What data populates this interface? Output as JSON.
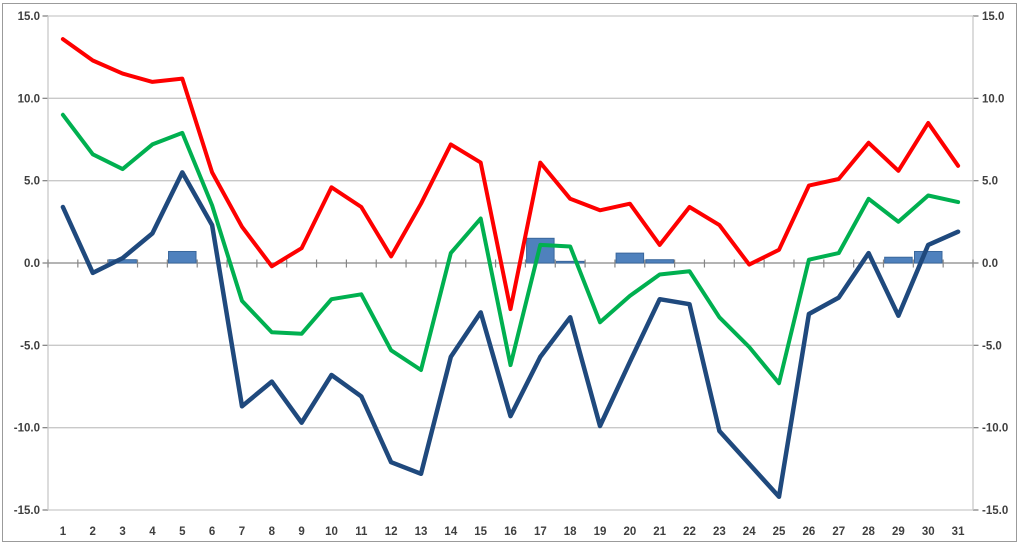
{
  "chart_data": {
    "type": "line",
    "title": "",
    "xlabel": "",
    "ylabel": "",
    "x": [
      1,
      2,
      3,
      4,
      5,
      6,
      7,
      8,
      9,
      10,
      11,
      12,
      13,
      14,
      15,
      16,
      17,
      18,
      19,
      20,
      21,
      22,
      23,
      24,
      25,
      26,
      27,
      28,
      29,
      30,
      31
    ],
    "xtick_labels": [
      "1",
      "2",
      "3",
      "4",
      "5",
      "6",
      "7",
      "8",
      "9",
      "10",
      "11",
      "12",
      "13",
      "14",
      "15",
      "16",
      "17",
      "18",
      "19",
      "20",
      "21",
      "22",
      "23",
      "24",
      "25",
      "26",
      "27",
      "28",
      "29",
      "30",
      "31"
    ],
    "ylim": [
      -15,
      15
    ],
    "ytick_values": [
      15,
      10,
      5,
      0,
      -5,
      -10,
      -15
    ],
    "ytick_labels_left": [
      "15.0",
      "10.0",
      "5.0",
      "0.0",
      "-5.0",
      "-10.0",
      "-15.0"
    ],
    "ytick_labels_right": [
      "15.0",
      "10.0",
      "5.0",
      "0.0",
      "-5.0",
      "-10.0",
      "-15.0"
    ],
    "grid": true,
    "legend": null,
    "series": [
      {
        "name": "red-line",
        "type": "line",
        "color": "#FE0000",
        "stroke_width": 4,
        "values": [
          13.6,
          12.3,
          11.5,
          11.0,
          11.2,
          5.5,
          2.2,
          -0.2,
          0.9,
          4.6,
          3.4,
          0.4,
          3.6,
          7.2,
          6.1,
          -2.8,
          6.1,
          3.9,
          3.2,
          3.6,
          1.1,
          3.4,
          2.3,
          -0.1,
          0.8,
          4.7,
          5.1,
          7.3,
          5.6,
          8.5,
          5.9
        ]
      },
      {
        "name": "green-line",
        "type": "line",
        "color": "#00B050",
        "stroke_width": 4,
        "values": [
          9.0,
          6.6,
          5.7,
          7.2,
          7.9,
          3.5,
          -2.3,
          -4.2,
          -4.3,
          -2.2,
          -1.9,
          -5.3,
          -6.5,
          0.6,
          2.7,
          -6.2,
          1.1,
          1.0,
          -3.6,
          -2.0,
          -0.7,
          -0.5,
          -3.3,
          -5.1,
          -7.3,
          0.2,
          0.6,
          3.9,
          2.5,
          4.1,
          3.7
        ]
      },
      {
        "name": "navy-line",
        "type": "line",
        "color": "#1F497D",
        "stroke_width": 4.5,
        "values": [
          3.4,
          -0.6,
          0.3,
          1.8,
          5.5,
          2.3,
          -8.7,
          -7.2,
          -9.7,
          -6.8,
          -8.1,
          -12.1,
          -12.8,
          -5.7,
          -3.0,
          -9.3,
          -5.7,
          -3.3,
          -9.9,
          -6.0,
          -2.2,
          -2.5,
          -10.2,
          -12.2,
          -14.2,
          -3.1,
          -2.1,
          0.6,
          -3.2,
          1.1,
          1.9
        ]
      },
      {
        "name": "blue-bars",
        "type": "bar",
        "color": "#4F81BD",
        "border_color": "#3A679C",
        "values": [
          null,
          null,
          0.2,
          null,
          0.7,
          null,
          null,
          null,
          null,
          null,
          null,
          null,
          null,
          null,
          null,
          null,
          1.5,
          0.1,
          null,
          0.6,
          0.2,
          null,
          null,
          null,
          null,
          null,
          null,
          null,
          0.35,
          0.7,
          null
        ]
      }
    ],
    "axis_colors": {
      "gridline": "#C9C9C9",
      "zero_line": "#868686",
      "tick": "#868686",
      "label": "#3F3F3F",
      "plot_border": "#C9C9C9",
      "frame_border": "#9B9B9B"
    }
  }
}
